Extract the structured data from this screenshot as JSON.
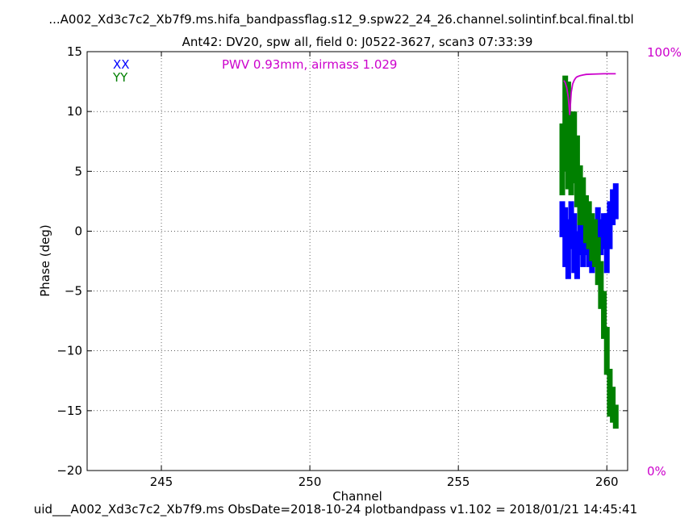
{
  "chart_data": {
    "type": "scatter",
    "title": "...A002_Xd3c7c2_Xb7f9.ms.hifa_bandpassflag.s12_9.spw22_24_26.channel.solintinf.bcal.final.tbl",
    "subtitle": "Ant42: DV20,  spw all,  field 0: J0522-3627,  scan3  07:33:39",
    "xlabel": "Channel",
    "ylabel": "Phase (deg)",
    "xlim": [
      242.5,
      260.7
    ],
    "ylim": [
      -20,
      15
    ],
    "xticks": [
      245,
      250,
      255,
      260
    ],
    "yticks": [
      -20,
      -15,
      -10,
      -5,
      0,
      5,
      10,
      15
    ],
    "grid": true,
    "legend_position": "top-left",
    "annotation": "PWV 0.93mm, airmass 1.029",
    "right_axis_labels": {
      "top": "100%",
      "bottom": "0%"
    },
    "footer": "uid___A002_Xd3c7c2_Xb7f9.ms  ObsDate=2018-10-24   plotbandpass v1.102 = 2018/01/21 14:45:41",
    "series": [
      {
        "name": "XX",
        "color": "#0000ff",
        "x": [
          258.5,
          258.6,
          258.7,
          258.8,
          258.9,
          259.0,
          259.1,
          259.2,
          259.3,
          259.4,
          259.5,
          259.6,
          259.7,
          259.8,
          259.9,
          260.0,
          260.1,
          260.2,
          260.3
        ],
        "y": [
          1.0,
          -0.5,
          -1.5,
          0.5,
          -1.0,
          -2.0,
          0.0,
          -1.0,
          -0.5,
          -1.0,
          -1.5,
          -0.5,
          0.0,
          -0.5,
          0.0,
          -1.0,
          0.5,
          2.0,
          2.5
        ],
        "spread": [
          1.5,
          2.5,
          2.5,
          2.0,
          2.5,
          2.0,
          2.0,
          2.0,
          1.5,
          2.0,
          2.0,
          1.5,
          2.0,
          1.5,
          1.5,
          2.5,
          2.0,
          1.5,
          1.5
        ]
      },
      {
        "name": "YY",
        "color": "#008000",
        "x": [
          258.5,
          258.6,
          258.7,
          258.8,
          258.9,
          259.0,
          259.1,
          259.2,
          259.3,
          259.4,
          259.5,
          259.6,
          259.7,
          259.8,
          259.9,
          260.0,
          260.1,
          260.2,
          260.3
        ],
        "y": [
          6.0,
          9.0,
          8.0,
          6.5,
          7.0,
          5.0,
          3.0,
          2.5,
          1.0,
          0.5,
          -0.5,
          -1.0,
          -2.5,
          -4.5,
          -7.0,
          -10.0,
          -13.5,
          -14.5,
          -15.5
        ],
        "spread": [
          3.0,
          4.0,
          4.5,
          3.5,
          3.0,
          3.0,
          2.5,
          2.0,
          2.0,
          2.0,
          2.0,
          2.0,
          2.0,
          2.0,
          2.0,
          2.0,
          2.0,
          1.5,
          1.0
        ]
      },
      {
        "name": "",
        "color": "#cc00cc",
        "kind": "line",
        "x": [
          258.55,
          258.6,
          258.65,
          258.7,
          258.75,
          258.8,
          258.85,
          258.9,
          258.95,
          259.0,
          259.1,
          259.2,
          259.3,
          259.5,
          259.7,
          259.9,
          260.1,
          260.3
        ],
        "y": [
          12.6,
          12.4,
          12.0,
          11.2,
          9.7,
          11.6,
          12.3,
          12.6,
          12.8,
          12.9,
          13.0,
          13.05,
          13.1,
          13.12,
          13.14,
          13.15,
          13.15,
          13.15
        ]
      }
    ]
  }
}
